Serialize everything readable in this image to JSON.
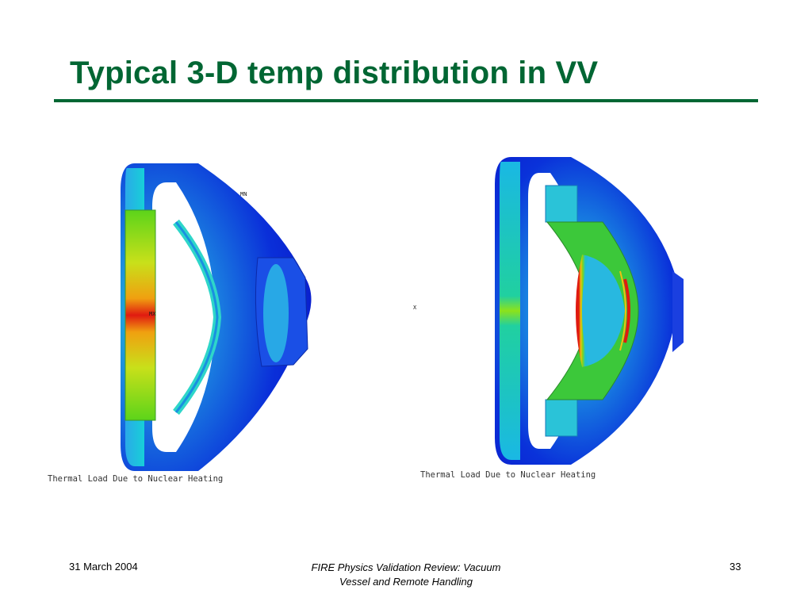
{
  "slide": {
    "title": "Typical 3-D temp distribution in VV"
  },
  "figures": [
    {
      "caption": "Thermal Load Due to Nuclear Heating",
      "labels": {
        "mn": "MN",
        "mx": "MX"
      }
    },
    {
      "caption": "Thermal Load Due to Nuclear Heating",
      "labels": {
        "axis": "X"
      }
    }
  ],
  "colors": {
    "title": "#006633",
    "rule": "#006633"
  },
  "footer": {
    "date": "31 March 2004",
    "center_line1": "FIRE Physics Validation Review: Vacuum",
    "center_line2": "Vessel and Remote Handling",
    "page_number": "33"
  }
}
